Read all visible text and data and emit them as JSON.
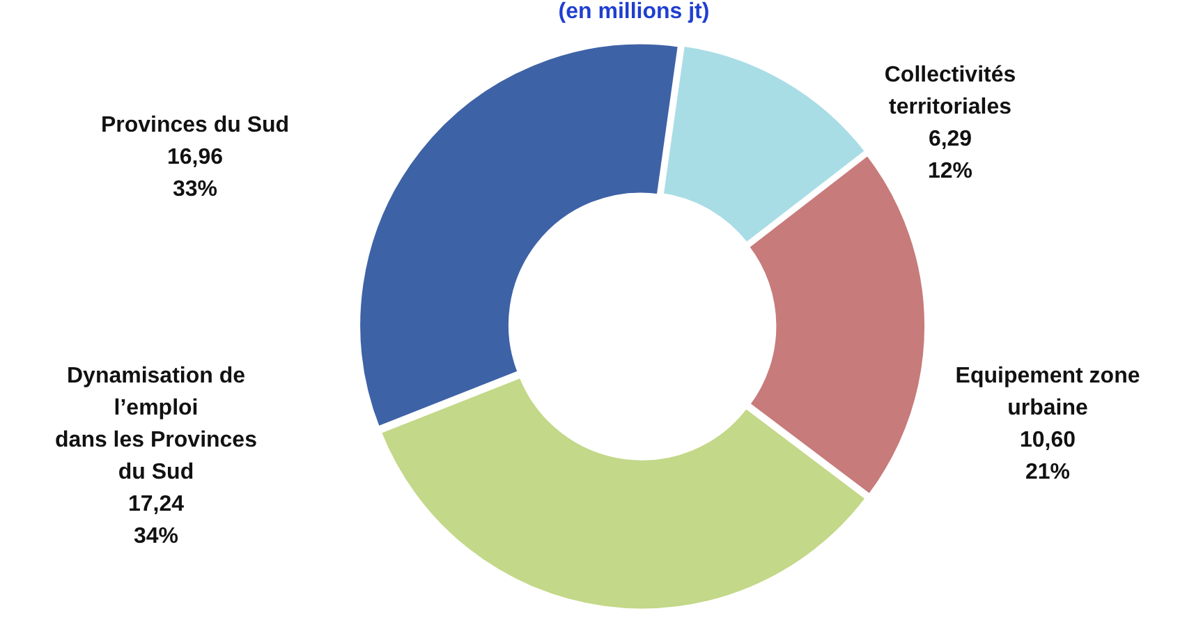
{
  "chart_data": {
    "type": "donut",
    "title": "(en millions jt)",
    "categories": [
      "Collectivités\nterritoriales",
      "Equipement zone\nurbaine",
      "Dynamisation de\nl’emploi\ndans les Provinces\ndu Sud",
      "Provinces du Sud"
    ],
    "values": [
      6.29,
      10.6,
      17.24,
      16.96
    ],
    "value_labels": [
      "6,29\n12%",
      "10,60\n21%",
      "17,24\n34%",
      "16,96\n33%"
    ],
    "colors": [
      "#a9dde6",
      "#c77b7b",
      "#c3d888",
      "#3e62a6"
    ],
    "legend": false
  }
}
